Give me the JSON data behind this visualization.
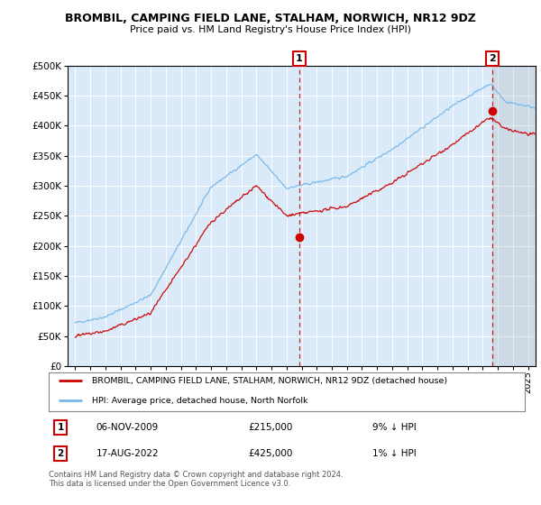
{
  "title": "BROMBIL, CAMPING FIELD LANE, STALHAM, NORWICH, NR12 9DZ",
  "subtitle": "Price paid vs. HM Land Registry's House Price Index (HPI)",
  "sale1_date": "06-NOV-2009",
  "sale1_price": 215000,
  "sale1_label": "9% ↓ HPI",
  "sale2_date": "17-AUG-2022",
  "sale2_price": 425000,
  "sale2_label": "1% ↓ HPI",
  "sale1_x": 2009.85,
  "sale2_x": 2022.62,
  "legend_line1": "BROMBIL, CAMPING FIELD LANE, STALHAM, NORWICH, NR12 9DZ (detached house)",
  "legend_line2": "HPI: Average price, detached house, North Norfolk",
  "footer": "Contains HM Land Registry data © Crown copyright and database right 2024.\nThis data is licensed under the Open Government Licence v3.0.",
  "hpi_color": "#78b8e8",
  "price_color": "#cc0000",
  "sale_dot_color": "#cc0000",
  "vline_color": "#cc0000",
  "plot_bg": "#daeaf8",
  "xmin": 1994.5,
  "xmax": 2025.5,
  "ymin": 0,
  "ymax": 500000,
  "yticks": [
    0,
    50000,
    100000,
    150000,
    200000,
    250000,
    300000,
    350000,
    400000,
    450000,
    500000
  ],
  "xticks": [
    1995,
    1996,
    1997,
    1998,
    1999,
    2000,
    2001,
    2002,
    2003,
    2004,
    2005,
    2006,
    2007,
    2008,
    2009,
    2010,
    2011,
    2012,
    2013,
    2014,
    2015,
    2016,
    2017,
    2018,
    2019,
    2020,
    2021,
    2022,
    2023,
    2024,
    2025
  ]
}
